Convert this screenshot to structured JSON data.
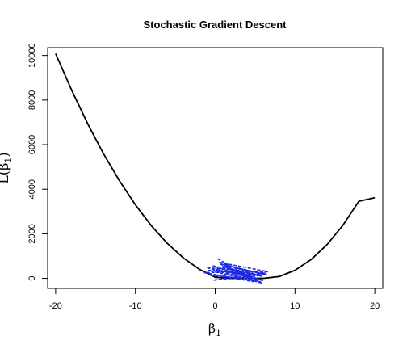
{
  "chart_data": {
    "type": "line",
    "title": "Stochastic Gradient Descent",
    "xlabel": "β",
    "xlabel_sub": "1",
    "ylabel": "L(β",
    "ylabel_sub": "1",
    "ylabel_close": ")",
    "xlim": [
      -21,
      21
    ],
    "ylim": [
      -450,
      10350
    ],
    "xticks": [
      -20,
      -10,
      0,
      10,
      20
    ],
    "xtick_labels": [
      "-20",
      "-10",
      "0",
      "10",
      "20"
    ],
    "yticks": [
      0,
      2000,
      4000,
      6000,
      8000,
      10000
    ],
    "ytick_labels": [
      "0",
      "2000",
      "4000",
      "6000",
      "8000",
      "10000"
    ],
    "grid": false,
    "series": [
      {
        "kind": "curve",
        "color": "#000000",
        "x": [
          -20,
          -18,
          -16,
          -14,
          -12,
          -10,
          -8,
          -6,
          -4,
          -2,
          0,
          2,
          4,
          5,
          6,
          8,
          10,
          12,
          14,
          16,
          18,
          20
        ],
        "values": [
          10080,
          8450,
          6950,
          5590,
          4380,
          3300,
          2360,
          1570,
          920,
          410,
          50,
          0,
          0,
          0,
          0,
          80,
          360,
          840,
          1510,
          2380,
          3460,
          3620
        ]
      },
      {
        "kind": "iterate-path",
        "color": "#1f2be0",
        "x": [
          0.3,
          5.8,
          -1.0,
          6.3,
          -0.2,
          5.5,
          0.5,
          6.6,
          -1.4,
          4.8,
          1.2,
          6.2,
          -0.6,
          5.1,
          0.9,
          6.0,
          0.1,
          4.6,
          1.6,
          5.7,
          -0.9,
          6.5,
          0.6,
          5.2,
          1.8,
          4.4,
          -0.3,
          5.9,
          2.2,
          4.9
        ],
        "values": [
          880,
          -210,
          480,
          240,
          -80,
          120,
          720,
          300,
          260,
          -150,
          610,
          180,
          130,
          -40,
          540,
          -100,
          400,
          60,
          470,
          -170,
          360,
          150,
          650,
          -60,
          330,
          20,
          560,
          90,
          410,
          -20
        ]
      }
    ]
  }
}
